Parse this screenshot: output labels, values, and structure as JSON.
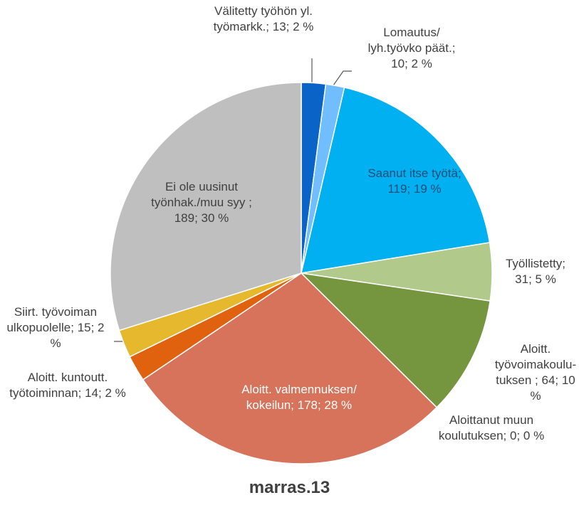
{
  "chart_data": {
    "type": "pie",
    "title": "marras.13",
    "categories": [
      "Välitetty työhön yl. työmarkk.",
      "Lomautus/ lyh.työvko päät.",
      "Saanut itse työtä",
      "Työllistetty",
      "Aloitt. työvoimakoulu-tuksen",
      "Aloittanut muun koulutuksen",
      "Aloitt. valmennuksen/ kokeilun",
      "Aloitt. kuntoutt. työtoiminnan",
      "Siirt. työvoiman ulkopuolelle",
      "Ei ole uusinut työnhak./muu syy"
    ],
    "values": [
      13,
      10,
      119,
      31,
      64,
      0,
      178,
      14,
      15,
      189
    ],
    "value_labels": [
      "Välitetty työhön yl. työmarkk.; 13; 2 %",
      "Lomautus/ lyh.työvko päät.; 10; 2 %",
      "Saanut itse työtä; 119; 19 %",
      "Työllistetty; 31; 5 %",
      "Aloitt. työvoimakoulu-tuksen ; 64; 10 %",
      "Aloittanut muun koulutuksen; 0; 0 %",
      "Aloitt. valmennuksen/ kokeilun; 178; 28 %",
      "Aloitt. kuntoutt. työtoiminnan; 14; 2 %",
      "Siirt. työvoiman ulkopuolelle; 15; 2 %",
      "Ei ole uusinut työnhak./muu syy ; 189; 30 %"
    ],
    "colors": [
      "#0a64c8",
      "#70bdff",
      "#00b0f0",
      "#b2c98c",
      "#76953f",
      "#4f6228",
      "#d6735a",
      "#e0620f",
      "#e6b82e",
      "#bfbfbf"
    ]
  }
}
